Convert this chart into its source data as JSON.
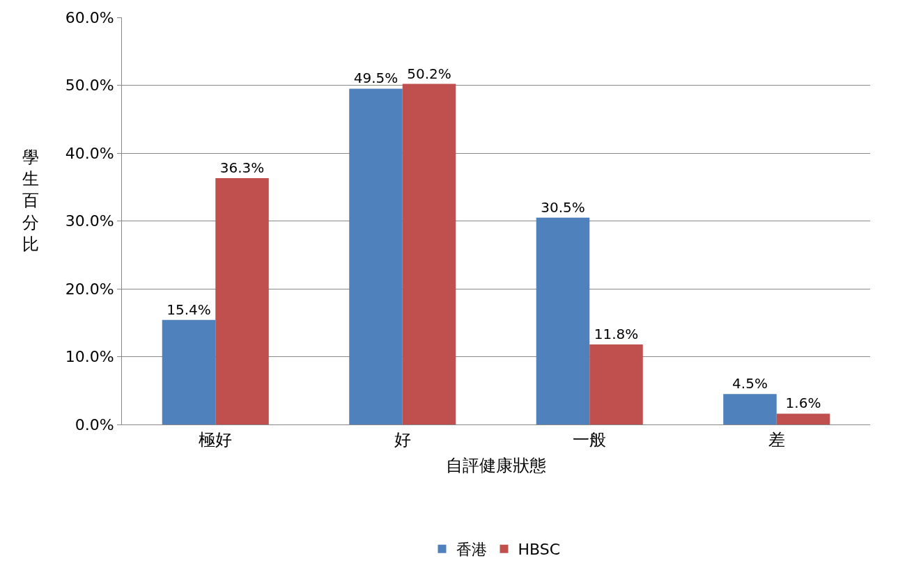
{
  "chart_data": {
    "type": "bar",
    "xlabel": "自評健康狀態",
    "ylabel": "學生百分比",
    "categories": [
      "極好",
      "好",
      "一般",
      "差"
    ],
    "series": [
      {
        "name": "香港",
        "color": "#4f81bd",
        "values": [
          15.4,
          49.5,
          30.5,
          4.5
        ],
        "value_labels": [
          "15.4%",
          "49.5%",
          "30.5%",
          "4.5%"
        ]
      },
      {
        "name": "HBSC",
        "color": "#c0504d",
        "values": [
          36.3,
          50.2,
          11.8,
          1.6
        ],
        "value_labels": [
          "36.3%",
          "50.2%",
          "11.8%",
          "1.6%"
        ]
      }
    ],
    "ylim": [
      0,
      60
    ],
    "yticks": [
      {
        "value": 0,
        "label": "0.0%"
      },
      {
        "value": 10,
        "label": "10.0%"
      },
      {
        "value": 20,
        "label": "20.0%"
      },
      {
        "value": 30,
        "label": "30.0%"
      },
      {
        "value": 40,
        "label": "40.0%"
      },
      {
        "value": 50,
        "label": "50.0%"
      },
      {
        "value": 60,
        "label": "60.0%"
      }
    ],
    "grid": "y",
    "legend": "bottom"
  }
}
